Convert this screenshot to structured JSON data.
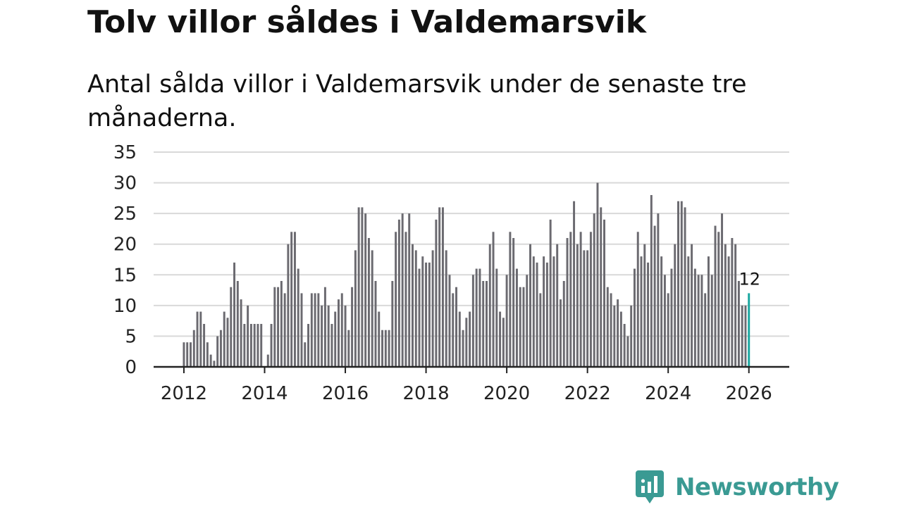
{
  "title": "Tolv villor såldes i Valdemarsvik",
  "subtitle": "Antal sålda villor i Valdemarsvik under de senaste tre månaderna.",
  "brand": {
    "name": "Newsworthy",
    "color": "#3a9a93"
  },
  "chart_data": {
    "type": "bar",
    "title": "Tolv villor såldes i Valdemarsvik",
    "xlabel": "",
    "ylabel": "",
    "ylim": [
      0,
      35
    ],
    "yticks": [
      0,
      5,
      10,
      15,
      20,
      25,
      30,
      35
    ],
    "xlim": [
      2011.25,
      2027.0
    ],
    "xticks": [
      2012,
      2014,
      2016,
      2018,
      2020,
      2022,
      2024,
      2026
    ],
    "grid": true,
    "bar_color": "#6b6a70",
    "highlight_color": "#1aa7a0",
    "start_year": 2012,
    "start_month": 1,
    "highlight_label": "12",
    "values": [
      4,
      4,
      4,
      6,
      9,
      9,
      7,
      4,
      2,
      1,
      5,
      6,
      9,
      8,
      13,
      17,
      14,
      11,
      7,
      10,
      7,
      7,
      7,
      7,
      0,
      2,
      7,
      13,
      13,
      14,
      12,
      20,
      22,
      22,
      16,
      12,
      4,
      7,
      12,
      12,
      12,
      10,
      13,
      10,
      7,
      9,
      11,
      12,
      10,
      6,
      13,
      19,
      26,
      26,
      25,
      21,
      19,
      14,
      9,
      6,
      6,
      6,
      14,
      22,
      24,
      25,
      22,
      25,
      20,
      19,
      16,
      18,
      17,
      17,
      19,
      24,
      26,
      26,
      19,
      15,
      12,
      13,
      9,
      6,
      8,
      9,
      15,
      16,
      16,
      14,
      14,
      20,
      22,
      16,
      9,
      8,
      15,
      22,
      21,
      16,
      13,
      13,
      15,
      20,
      18,
      17,
      12,
      18,
      17,
      24,
      18,
      20,
      11,
      14,
      21,
      22,
      27,
      20,
      22,
      19,
      19,
      22,
      25,
      30,
      26,
      24,
      13,
      12,
      10,
      11,
      9,
      7,
      5,
      10,
      16,
      22,
      18,
      20,
      17,
      28,
      23,
      25,
      18,
      15,
      12,
      16,
      20,
      27,
      27,
      26,
      18,
      20,
      16,
      15,
      15,
      12,
      18,
      15,
      23,
      22,
      25,
      20,
      18,
      21,
      20,
      14,
      10,
      10,
      12
    ]
  }
}
